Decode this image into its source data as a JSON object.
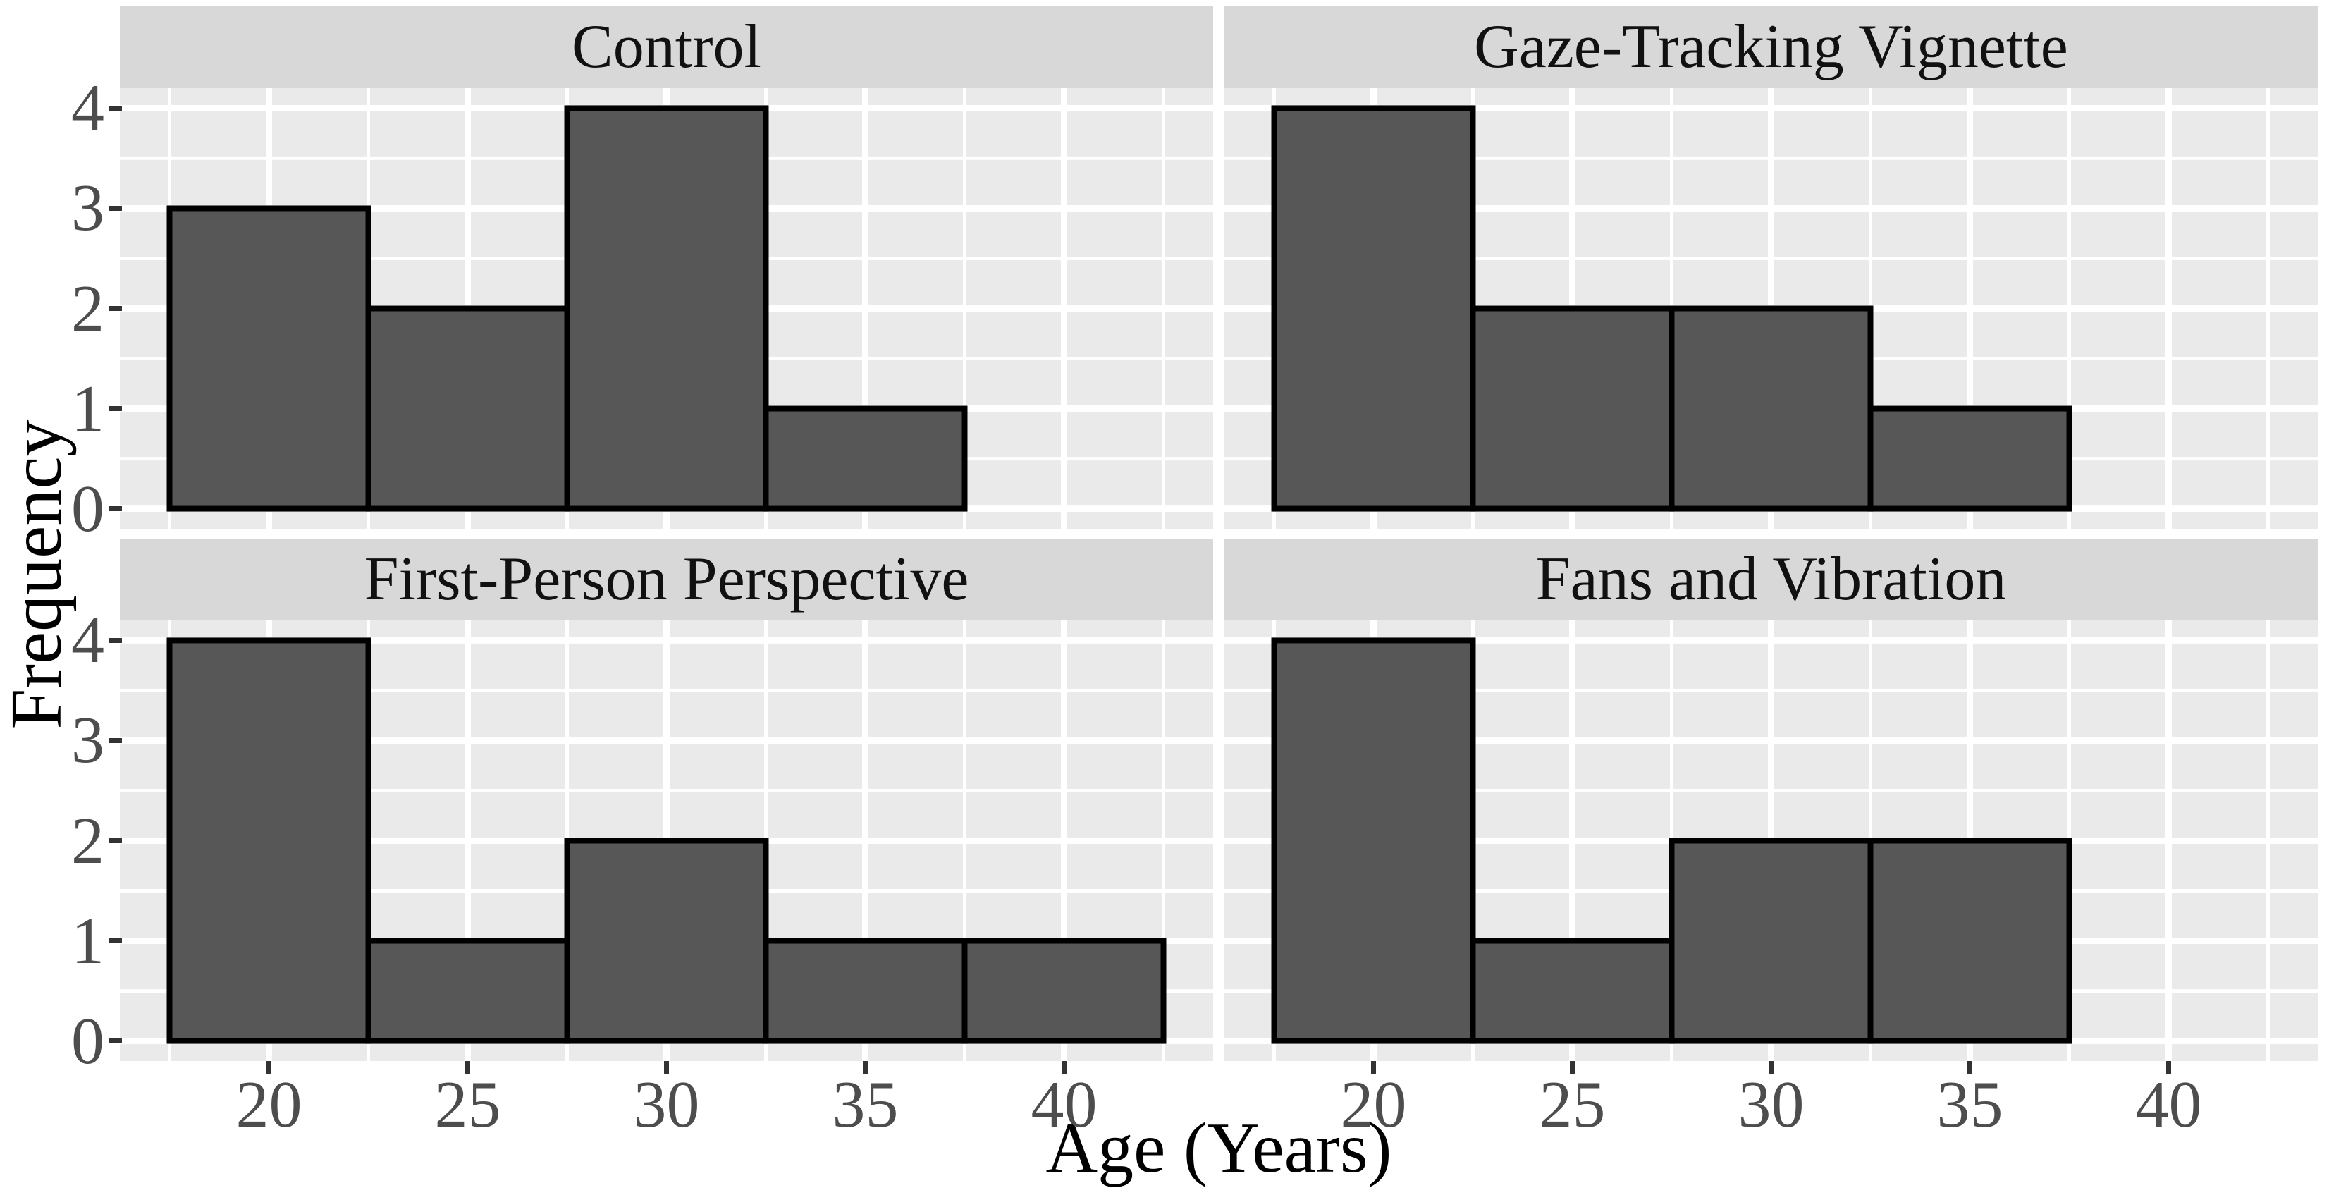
{
  "chart_data": {
    "type": "bar",
    "subtype": "faceted-histogram",
    "title": "",
    "xlabel": "Age (Years)",
    "ylabel": "Frequency",
    "bin_edges": [
      17.5,
      22.5,
      27.5,
      32.5,
      37.5,
      42.5
    ],
    "bin_width": 5,
    "x_ticks": [
      "20",
      "25",
      "30",
      "35",
      "40"
    ],
    "x_tick_values": [
      20,
      25,
      30,
      35,
      40
    ],
    "y_ticks": [
      "0",
      "1",
      "2",
      "3",
      "4"
    ],
    "y_tick_values": [
      0,
      1,
      2,
      3,
      4
    ],
    "x_minor_gridlines": [
      17.5,
      22.5,
      27.5,
      32.5,
      37.5,
      42.5
    ],
    "y_minor_gridlines": [
      0.5,
      1.5,
      2.5,
      3.5
    ],
    "xlim": [
      16.25,
      43.75
    ],
    "ylim": [
      -0.2,
      4.2
    ],
    "grid": "major and minor white gridlines on gray panel",
    "legend": "none",
    "facets": [
      {
        "label": "Control",
        "counts": [
          3,
          2,
          4,
          1,
          0
        ]
      },
      {
        "label": "Gaze-Tracking Vignette",
        "counts": [
          4,
          2,
          2,
          1,
          0
        ]
      },
      {
        "label": "First-Person Perspective",
        "counts": [
          4,
          1,
          2,
          1,
          1
        ]
      },
      {
        "label": "Fans and Vibration",
        "counts": [
          4,
          1,
          2,
          2,
          0
        ]
      }
    ],
    "colors": {
      "bar_fill": "#575757",
      "bar_stroke": "#000000",
      "panel_background": "#eaeaea",
      "strip_background": "#d8d8d8",
      "gridline": "#ffffff",
      "tick_label": "#4d4d4d",
      "tick_mark": "#333333",
      "text": "#000000"
    }
  }
}
